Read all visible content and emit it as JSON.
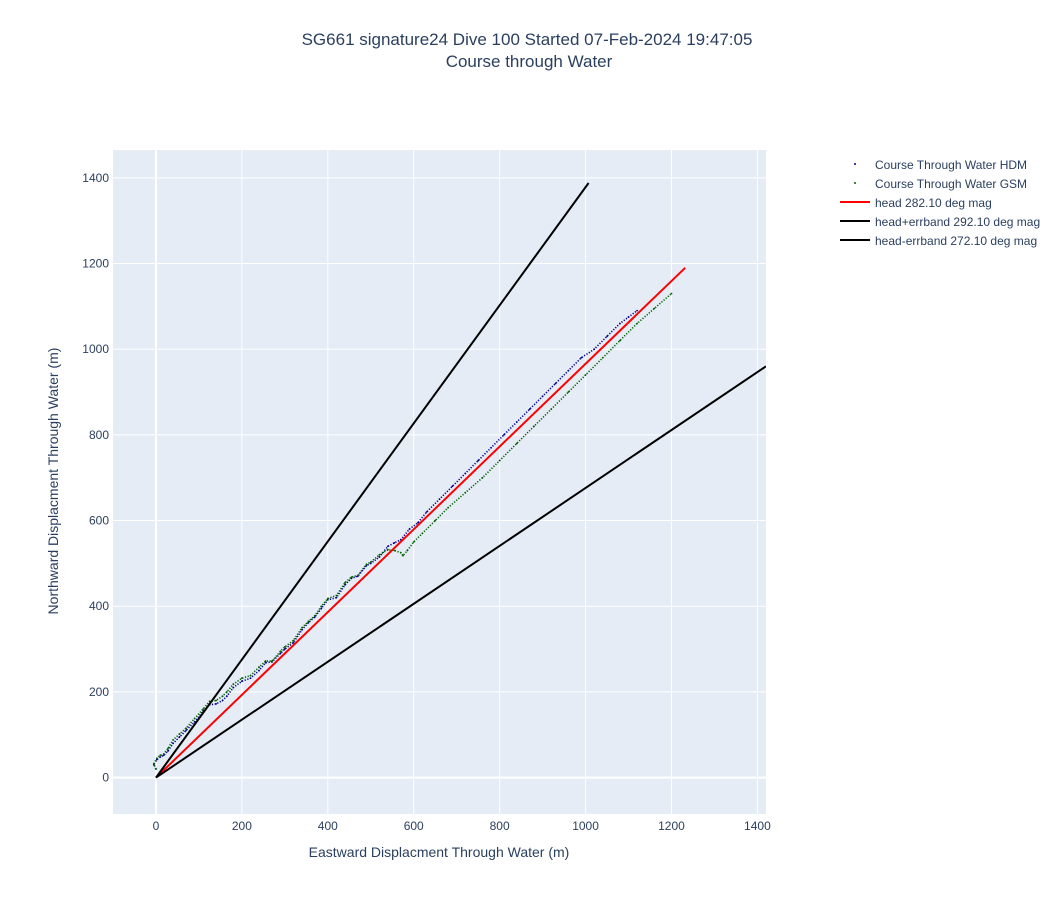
{
  "chart_data": {
    "type": "line",
    "title_line1": "SG661 signature24 Dive 100 Started 07-Feb-2024 19:47:05",
    "title_line2": "Course through Water",
    "xlabel": "Eastward Displacment Through Water (m)",
    "ylabel": "Northward Displacment Through Water (m)",
    "xlim": [
      -100,
      1420
    ],
    "ylim": [
      -85,
      1465
    ],
    "xticks": [
      0,
      200,
      400,
      600,
      800,
      1000,
      1200,
      1400
    ],
    "yticks": [
      0,
      200,
      400,
      600,
      800,
      1000,
      1200,
      1400
    ],
    "grid": true,
    "legend_position": "top-right",
    "colors": {
      "plot_bg": "#e5ecf6",
      "grid": "#ffffff",
      "text": "#2a3f5f",
      "hdm": "#00008b",
      "gsm": "#006400",
      "head": "#ff0000",
      "errband": "#000000"
    },
    "series": [
      {
        "name": "Course Through Water HDM",
        "style": "dotted",
        "color": "#00008b",
        "x": [
          0,
          -5,
          2,
          10,
          18,
          28,
          40,
          55,
          70,
          90,
          110,
          125,
          140,
          155,
          165,
          180,
          200,
          220,
          240,
          255,
          270,
          290,
          300,
          320,
          340,
          355,
          370,
          385,
          400,
          420,
          440,
          455,
          470,
          490,
          500,
          520,
          540,
          555,
          570,
          590,
          610,
          630,
          660,
          690,
          720,
          750,
          780,
          810,
          840,
          870,
          900,
          930,
          960,
          990,
          1020,
          1050,
          1080,
          1100,
          1120
        ],
        "y": [
          20,
          30,
          42,
          48,
          52,
          62,
          80,
          95,
          110,
          130,
          155,
          170,
          172,
          180,
          190,
          210,
          225,
          232,
          250,
          268,
          270,
          290,
          300,
          315,
          345,
          362,
          375,
          395,
          415,
          420,
          450,
          465,
          470,
          495,
          500,
          515,
          540,
          548,
          555,
          580,
          595,
          620,
          650,
          680,
          710,
          740,
          770,
          800,
          830,
          860,
          890,
          920,
          950,
          980,
          1000,
          1030,
          1060,
          1075,
          1090
        ]
      },
      {
        "name": "Course Through Water GSM",
        "style": "dotted",
        "color": "#006400",
        "x": [
          0,
          -5,
          2,
          10,
          18,
          28,
          40,
          55,
          70,
          90,
          110,
          125,
          140,
          155,
          165,
          180,
          200,
          220,
          240,
          255,
          270,
          290,
          300,
          320,
          340,
          355,
          370,
          385,
          400,
          420,
          440,
          455,
          470,
          490,
          500,
          520,
          540,
          555,
          570,
          575,
          585,
          600,
          620,
          650,
          680,
          720,
          760,
          800,
          840,
          880,
          920,
          960,
          1000,
          1040,
          1080,
          1120,
          1160,
          1200
        ],
        "y": [
          20,
          32,
          45,
          52,
          55,
          68,
          88,
          102,
          115,
          138,
          160,
          178,
          180,
          190,
          200,
          218,
          232,
          238,
          258,
          272,
          272,
          295,
          305,
          320,
          350,
          365,
          378,
          400,
          418,
          425,
          455,
          468,
          472,
          498,
          503,
          520,
          532,
          530,
          525,
          518,
          530,
          550,
          570,
          600,
          630,
          665,
          700,
          740,
          780,
          820,
          860,
          900,
          940,
          980,
          1020,
          1060,
          1095,
          1130
        ]
      },
      {
        "name": "head 282.10 deg mag",
        "style": "solid",
        "color": "#ff0000",
        "x": [
          0,
          1232
        ],
        "y": [
          0,
          1190
        ]
      },
      {
        "name": "head+errband 292.10 deg mag",
        "style": "solid",
        "color": "#000000",
        "x": [
          0,
          1007
        ],
        "y": [
          0,
          1388
        ]
      },
      {
        "name": "head-errband 272.10 deg mag",
        "style": "solid",
        "color": "#000000",
        "x": [
          0,
          1420
        ],
        "y": [
          0,
          960
        ]
      }
    ]
  }
}
